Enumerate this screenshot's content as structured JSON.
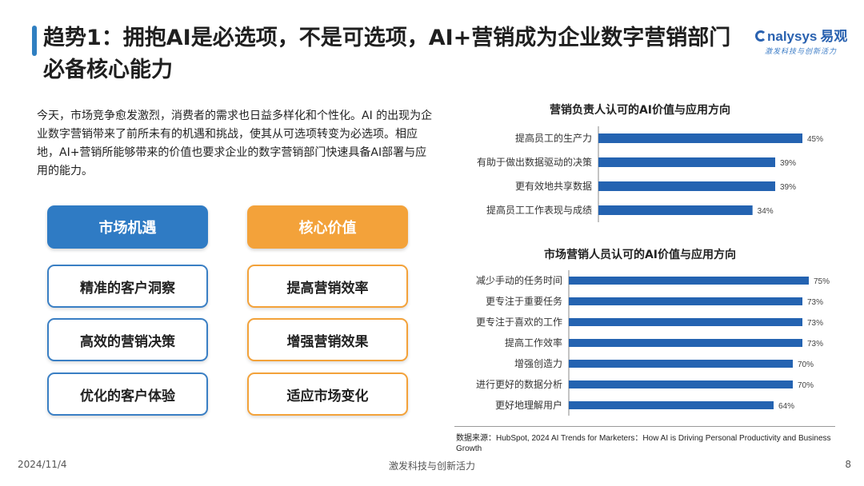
{
  "header": {
    "title": "趋势1：拥抱AI是必选项，不是可选项，AI+营销成为企业数字营销部门必备核心能力"
  },
  "logo": {
    "brand_en": "nalysys",
    "brand_cn": "易观",
    "slogan": "激发科技与创新活力"
  },
  "intro_text": "今天，市场竞争愈发激烈，消费者的需求也日益多样化和个性化。AI 的出现为企业数字营销带来了前所未有的机遇和挑战，使其从可选项转变为必选项。相应地，AI+营销所能够带来的价值也要求企业的数字营销部门快速具备AI部署与应用的能力。",
  "opportunities": {
    "heading": "市场机遇",
    "items": [
      "精准的客户洞察",
      "高效的营销决策",
      "优化的客户体验"
    ]
  },
  "core_values": {
    "heading": "核心价值",
    "items": [
      "提高营销效率",
      "增强营销效果",
      "适应市场变化"
    ]
  },
  "colors": {
    "accent_blue": "#2f7bc4",
    "accent_orange": "#f3a23a",
    "bar_blue": "#2463b1"
  },
  "chart_data": [
    {
      "type": "bar",
      "orientation": "horizontal",
      "title": "营销负责人认可的AI价值与应用方向",
      "categories": [
        "提高员工的生产力",
        "有助于做出数据驱动的决策",
        "更有效地共享数据",
        "提高员工工作表现与成绩"
      ],
      "values": [
        45,
        39,
        39,
        34
      ],
      "value_labels": [
        "45%",
        "39%",
        "39%",
        "34%"
      ],
      "unit": "%",
      "xlim": [
        0,
        45
      ],
      "grid": false,
      "legend": "none"
    },
    {
      "type": "bar",
      "orientation": "horizontal",
      "title": "市场营销人员认可的AI价值与应用方向",
      "categories": [
        "减少手动的任务时间",
        "更专注于重要任务",
        "更专注于喜欢的工作",
        "提高工作效率",
        "增强创造力",
        "进行更好的数据分析",
        "更好地理解用户"
      ],
      "values": [
        75,
        73,
        73,
        73,
        70,
        70,
        64
      ],
      "value_labels": [
        "75%",
        "73%",
        "73%",
        "73%",
        "70%",
        "70%",
        "64%"
      ],
      "unit": "%",
      "xlim": [
        0,
        75
      ],
      "grid": false,
      "legend": "none"
    }
  ],
  "source_text": "数据来源：HubSpot, 2024 AI Trends for Marketers：How AI is Driving Personal Productivity and Business Growth",
  "footer": {
    "date": "2024/11/4",
    "center_text": "激发科技与创新活力",
    "page": "8"
  }
}
